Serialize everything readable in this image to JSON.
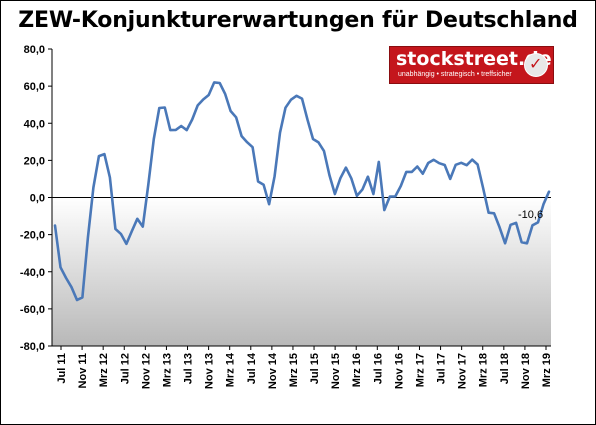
{
  "chart_data": {
    "type": "line",
    "title": "ZEW-Konjunkturerwartungen für Deutschland",
    "ylim": [
      -80,
      80
    ],
    "yticks": [
      "80,0",
      "60,0",
      "40,0",
      "20,0",
      "0,0",
      "-20,0",
      "-40,0",
      "-60,0",
      "-80,0"
    ],
    "xtick_labels": [
      "Jul 11",
      "Nov 11",
      "Mrz 12",
      "Jul 12",
      "Nov 12",
      "Mrz 13",
      "Jul 13",
      "Nov 13",
      "Mrz 14",
      "Jul 14",
      "Nov 14",
      "Mrz 15",
      "Jul 15",
      "Nov 15",
      "Mrz 16",
      "Jul 16",
      "Nov 16",
      "Mrz 17",
      "Jul 17",
      "Nov 17",
      "Mrz 18",
      "Jul 18",
      "Nov 18",
      "Mrz 19"
    ],
    "series_color": "#4a78b8",
    "values": [
      -15.1,
      -37.6,
      -43.3,
      -48.3,
      -55.2,
      -53.8,
      -21.6,
      5.4,
      22.3,
      23.4,
      10.8,
      -16.9,
      -19.6,
      -25.0,
      -18.2,
      -11.5,
      -15.7,
      6.9,
      31.5,
      48.2,
      48.5,
      36.3,
      36.4,
      38.5,
      36.3,
      42.0,
      49.6,
      52.8,
      55.2,
      62.0,
      61.7,
      55.7,
      46.6,
      43.2,
      33.1,
      29.8,
      27.1,
      8.6,
      6.9,
      -3.6,
      11.5,
      34.9,
      48.4,
      52.7,
      54.8,
      53.3,
      41.9,
      31.5,
      29.7,
      25.0,
      12.1,
      1.9,
      10.4,
      16.1,
      10.2,
      0.9,
      4.3,
      11.2,
      1.9,
      19.2,
      -6.8,
      0.5,
      0.6,
      6.2,
      13.8,
      13.8,
      16.7,
      12.8,
      18.6,
      20.3,
      18.5,
      17.5,
      10.0,
      17.6,
      18.7,
      17.4,
      20.4,
      17.8,
      5.1,
      -8.2,
      -8.5,
      -16.1,
      -24.7,
      -14.7,
      -13.7,
      -24.1,
      -24.7,
      -15.0,
      -13.4,
      -3.6,
      3.1
    ],
    "annotation": "-10,6",
    "grid": false,
    "background": "gradient-below-zero"
  },
  "logo": {
    "text": "stockstreet.de",
    "tagline": "unabhängig • strategisch • treffsicher"
  }
}
